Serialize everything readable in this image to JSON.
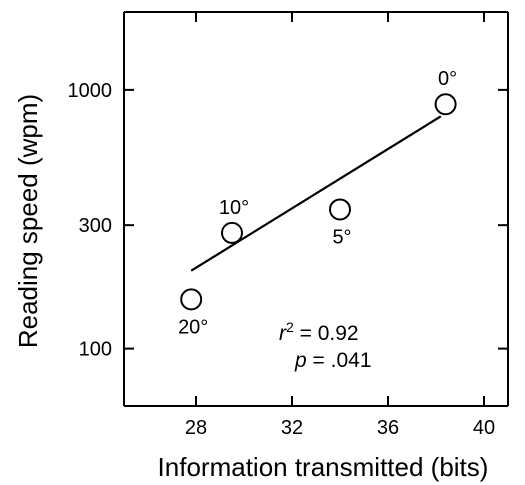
{
  "chart_data": {
    "type": "scatter",
    "title": "",
    "xlabel": "Information transmitted (bits)",
    "ylabel": "Reading speed (wpm)",
    "xlim": [
      25,
      41
    ],
    "ylim": [
      60,
      2000
    ],
    "yscale": "log",
    "xticks": [
      28,
      32,
      36,
      40
    ],
    "yticks": [
      100,
      300,
      1000
    ],
    "grid": false,
    "points": [
      {
        "label": "0°",
        "x": 38.4,
        "y": 880
      },
      {
        "label": "5°",
        "x": 34.0,
        "y": 345
      },
      {
        "label": "10°",
        "x": 29.5,
        "y": 280
      },
      {
        "label": "20°",
        "x": 27.8,
        "y": 155
      }
    ],
    "fit_line": {
      "x": [
        27.8,
        38.2
      ],
      "y": [
        200,
        790
      ]
    },
    "annotations": {
      "r_symbol": "r",
      "r_exp": "2",
      "r_value": " = 0.92",
      "p_symbol": "p",
      "p_value": " = .041"
    }
  }
}
